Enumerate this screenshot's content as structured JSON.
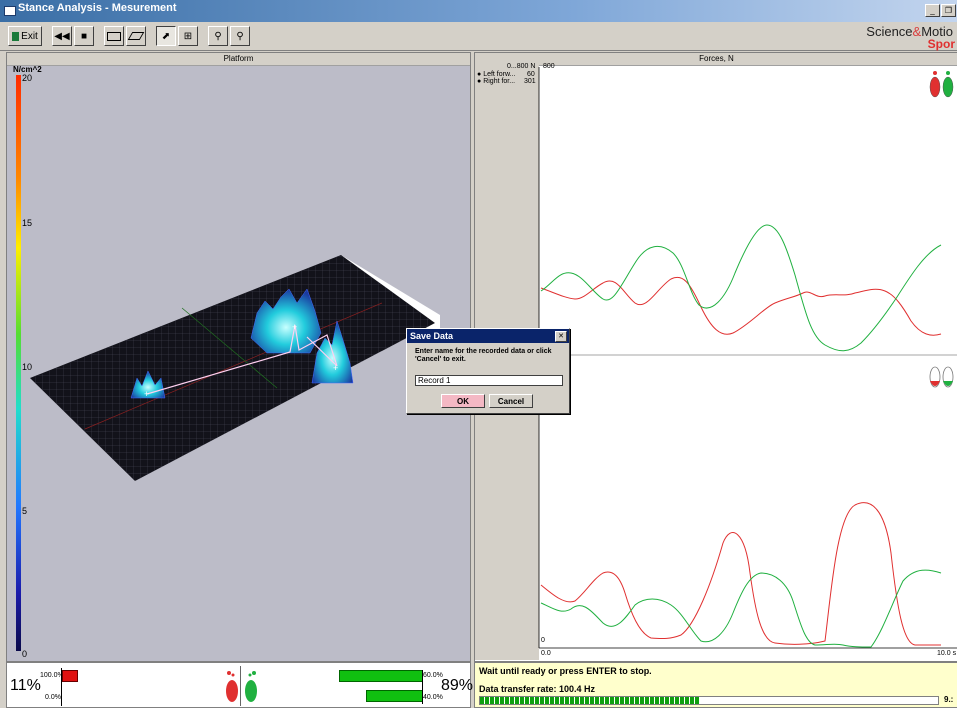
{
  "window": {
    "title": "Stance Analysis - Mesurement"
  },
  "toolbar": {
    "exit_label": "Exit"
  },
  "logo": {
    "line1_a": "Science",
    "line1_amp": "&",
    "line1_b": "Motio",
    "line2": "Spor"
  },
  "platform": {
    "title": "Platform",
    "scale_unit": "N/cm^2",
    "scale_ticks": [
      "20",
      "15",
      "10",
      "5",
      "0"
    ]
  },
  "forces": {
    "title": "Forces, N",
    "range_label": "0...800 N",
    "ymax_label": "800",
    "legend": [
      {
        "name": "Left forw...",
        "value": "60",
        "color": "#e03030"
      },
      {
        "name": "Right for...",
        "value": "301",
        "color": "#20b040"
      }
    ],
    "lower_y0": "0",
    "x_start": "0.0",
    "x_end": "10.0 s"
  },
  "dialog": {
    "title": "Save Data",
    "message": "Enter name for the recorded data or click 'Cancel' to exit.",
    "input_value": "Record 1",
    "ok_label": "OK",
    "cancel_label": "Cancel",
    "close_symbol": "✕"
  },
  "balance": {
    "left_percent": "11%",
    "left_top_label": "100.0%",
    "left_bottom_label": "0.0%",
    "right_percent": "89%",
    "right_top_label": "60.0%",
    "right_bottom_label": "40.0%",
    "left_bar_fraction": 1.0,
    "right_top_fraction": 0.6,
    "right_bottom_fraction": 0.4
  },
  "status": {
    "line1": "Wait until ready or press ENTER to stop.",
    "line2": "Data transfer rate: 100.4 Hz",
    "progress_fraction": 0.48,
    "progress_label": "9.:"
  },
  "colors": {
    "red_series": "#e03030",
    "green_series": "#20b040",
    "accent": "#0a246a"
  }
}
